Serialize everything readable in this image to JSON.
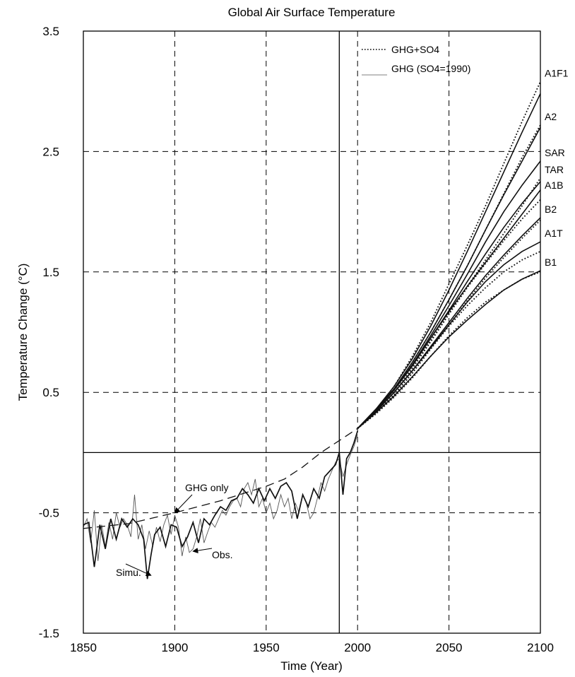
{
  "chart_data": {
    "type": "line",
    "title": "Global Air Surface Temperature",
    "xlabel": "Time (Year)",
    "ylabel": "Temperature Change (°C)",
    "xlim": [
      1850,
      2100
    ],
    "ylim": [
      -1.5,
      3.5
    ],
    "xticks": [
      1850,
      1900,
      1950,
      2000,
      2050,
      2100
    ],
    "xtick_labels": [
      "1850",
      "1900",
      "1950",
      "2000",
      "2050",
      "2100"
    ],
    "yticks": [
      -1.5,
      -0.5,
      0.5,
      1.5,
      2.5,
      3.5
    ],
    "ytick_labels": [
      "-1.5",
      "-0.5",
      "0.5",
      "1.5",
      "2.5",
      "3.5"
    ],
    "grid": true,
    "reference_lines": {
      "x": 1990,
      "y": 0
    },
    "legend": {
      "placement": "top-right",
      "entries": [
        {
          "label": "GHG+SO4",
          "style": "dotted"
        },
        {
          "label": "GHG (SO4=1990)",
          "style": "thin-solid"
        }
      ]
    },
    "historical": [
      {
        "name": "Obs.",
        "x": [
          1850,
          1852,
          1854,
          1856,
          1858,
          1860,
          1862,
          1864,
          1866,
          1868,
          1870,
          1872,
          1874,
          1876,
          1878,
          1880,
          1882,
          1884,
          1886,
          1888,
          1890,
          1892,
          1894,
          1896,
          1898,
          1900,
          1902,
          1904,
          1906,
          1908,
          1910,
          1912,
          1914,
          1916,
          1918,
          1920,
          1922,
          1924,
          1926,
          1928,
          1930,
          1932,
          1934,
          1936,
          1938,
          1940,
          1942,
          1944,
          1946,
          1948,
          1950,
          1952,
          1954,
          1956,
          1958,
          1960,
          1962,
          1964,
          1966,
          1968,
          1970,
          1972,
          1974,
          1976,
          1978,
          1980,
          1982,
          1984,
          1986,
          1988,
          1990,
          1992,
          1994,
          1996,
          1998,
          2000
        ],
        "values": [
          -0.62,
          -0.55,
          -0.75,
          -0.48,
          -0.9,
          -0.6,
          -0.78,
          -0.58,
          -0.72,
          -0.5,
          -0.62,
          -0.55,
          -0.6,
          -0.7,
          -0.35,
          -0.72,
          -0.6,
          -0.8,
          -0.65,
          -0.78,
          -0.62,
          -0.74,
          -0.6,
          -0.52,
          -0.68,
          -0.52,
          -0.62,
          -0.86,
          -0.7,
          -0.83,
          -0.8,
          -0.7,
          -0.55,
          -0.75,
          -0.66,
          -0.58,
          -0.62,
          -0.55,
          -0.48,
          -0.52,
          -0.45,
          -0.4,
          -0.38,
          -0.45,
          -0.3,
          -0.25,
          -0.35,
          -0.22,
          -0.45,
          -0.38,
          -0.5,
          -0.42,
          -0.55,
          -0.48,
          -0.35,
          -0.45,
          -0.38,
          -0.55,
          -0.42,
          -0.5,
          -0.35,
          -0.42,
          -0.55,
          -0.5,
          -0.38,
          -0.25,
          -0.32,
          -0.22,
          -0.15,
          -0.08,
          -0.05,
          -0.2,
          -0.1,
          -0.02,
          0.05,
          0.15
        ]
      },
      {
        "name": "Simu.",
        "x": [
          1850,
          1853,
          1856,
          1859,
          1862,
          1865,
          1868,
          1871,
          1874,
          1877,
          1880,
          1883,
          1885,
          1887,
          1889,
          1892,
          1895,
          1898,
          1901,
          1904,
          1907,
          1910,
          1913,
          1916,
          1919,
          1922,
          1925,
          1928,
          1931,
          1934,
          1937,
          1940,
          1943,
          1946,
          1949,
          1952,
          1955,
          1958,
          1961,
          1964,
          1967,
          1970,
          1973,
          1976,
          1979,
          1982,
          1985,
          1988,
          1990,
          1992,
          1994,
          1996,
          1998,
          2000
        ],
        "values": [
          -0.6,
          -0.58,
          -0.95,
          -0.6,
          -0.8,
          -0.55,
          -0.72,
          -0.55,
          -0.62,
          -0.55,
          -0.6,
          -0.72,
          -1.05,
          -0.85,
          -0.68,
          -0.62,
          -0.78,
          -0.6,
          -0.62,
          -0.78,
          -0.7,
          -0.58,
          -0.75,
          -0.55,
          -0.6,
          -0.52,
          -0.45,
          -0.48,
          -0.4,
          -0.38,
          -0.3,
          -0.35,
          -0.42,
          -0.3,
          -0.4,
          -0.3,
          -0.38,
          -0.28,
          -0.25,
          -0.32,
          -0.55,
          -0.35,
          -0.45,
          -0.3,
          -0.38,
          -0.2,
          -0.15,
          -0.1,
          0.0,
          -0.35,
          -0.05,
          0.0,
          0.08,
          0.18
        ]
      },
      {
        "name": "GHG only",
        "x": [
          1850,
          1875,
          1900,
          1925,
          1950,
          1960,
          1970,
          1980,
          1990,
          2000
        ],
        "values": [
          -0.63,
          -0.59,
          -0.5,
          -0.4,
          -0.28,
          -0.22,
          -0.12,
          0.0,
          0.1,
          0.2
        ]
      }
    ],
    "scenarios": {
      "x": [
        2000,
        2010,
        2020,
        2030,
        2040,
        2050,
        2060,
        2070,
        2080,
        2090,
        2100
      ],
      "series": [
        {
          "name": "A1F1",
          "ghg_so4": [
            0.2,
            0.35,
            0.55,
            0.8,
            1.08,
            1.4,
            1.72,
            2.05,
            2.4,
            2.75,
            3.08
          ],
          "ghg_so4_1990": [
            0.2,
            0.36,
            0.55,
            0.78,
            1.05,
            1.35,
            1.67,
            2.0,
            2.33,
            2.66,
            2.98
          ]
        },
        {
          "name": "A2",
          "ghg_so4": [
            0.2,
            0.35,
            0.52,
            0.75,
            1.0,
            1.27,
            1.55,
            1.85,
            2.15,
            2.45,
            2.72
          ],
          "ghg_so4_1990": [
            0.2,
            0.36,
            0.53,
            0.75,
            1.0,
            1.27,
            1.55,
            1.85,
            2.14,
            2.42,
            2.7
          ]
        },
        {
          "name": "SAR",
          "ghg_so4_1990": [
            0.2,
            0.35,
            0.52,
            0.73,
            0.97,
            1.22,
            1.48,
            1.75,
            2.0,
            2.22,
            2.42
          ]
        },
        {
          "name": "TAR",
          "ghg_so4": [
            0.2,
            0.34,
            0.5,
            0.7,
            0.92,
            1.15,
            1.38,
            1.6,
            1.82,
            2.05,
            2.28
          ],
          "ghg_so4_1990": [
            0.2,
            0.35,
            0.52,
            0.72,
            0.95,
            1.18,
            1.42,
            1.65,
            1.87,
            2.07,
            2.25
          ]
        },
        {
          "name": "A1B",
          "ghg_so4": [
            0.2,
            0.34,
            0.5,
            0.7,
            0.93,
            1.15,
            1.37,
            1.57,
            1.76,
            1.94,
            2.1
          ],
          "ghg_so4_1990": [
            0.2,
            0.35,
            0.52,
            0.72,
            0.95,
            1.17,
            1.38,
            1.58,
            1.78,
            1.98,
            2.18
          ]
        },
        {
          "name": "B2",
          "ghg_so4": [
            0.2,
            0.33,
            0.48,
            0.66,
            0.86,
            1.06,
            1.26,
            1.45,
            1.62,
            1.78,
            1.93
          ],
          "ghg_so4_1990": [
            0.2,
            0.34,
            0.5,
            0.68,
            0.88,
            1.08,
            1.28,
            1.47,
            1.64,
            1.8,
            1.95
          ]
        },
        {
          "name": "A1T",
          "ghg_so4": [
            0.2,
            0.33,
            0.48,
            0.66,
            0.86,
            1.05,
            1.22,
            1.37,
            1.5,
            1.6,
            1.67
          ],
          "ghg_so4_1990": [
            0.2,
            0.34,
            0.5,
            0.68,
            0.87,
            1.06,
            1.25,
            1.42,
            1.56,
            1.67,
            1.75
          ]
        },
        {
          "name": "B1",
          "ghg_so4": [
            0.2,
            0.32,
            0.46,
            0.62,
            0.8,
            0.97,
            1.12,
            1.25,
            1.35,
            1.44,
            1.5
          ],
          "ghg_so4_1990": [
            0.2,
            0.33,
            0.47,
            0.63,
            0.8,
            0.96,
            1.1,
            1.23,
            1.35,
            1.44,
            1.51
          ]
        }
      ]
    },
    "annotations": [
      {
        "text": "GHG only",
        "target_year": 1900,
        "target_value": -0.5
      },
      {
        "text": "Simu.",
        "target_year": 1887,
        "target_value": -1.02
      },
      {
        "text": "Obs.",
        "target_year": 1910,
        "target_value": -0.82
      }
    ]
  }
}
